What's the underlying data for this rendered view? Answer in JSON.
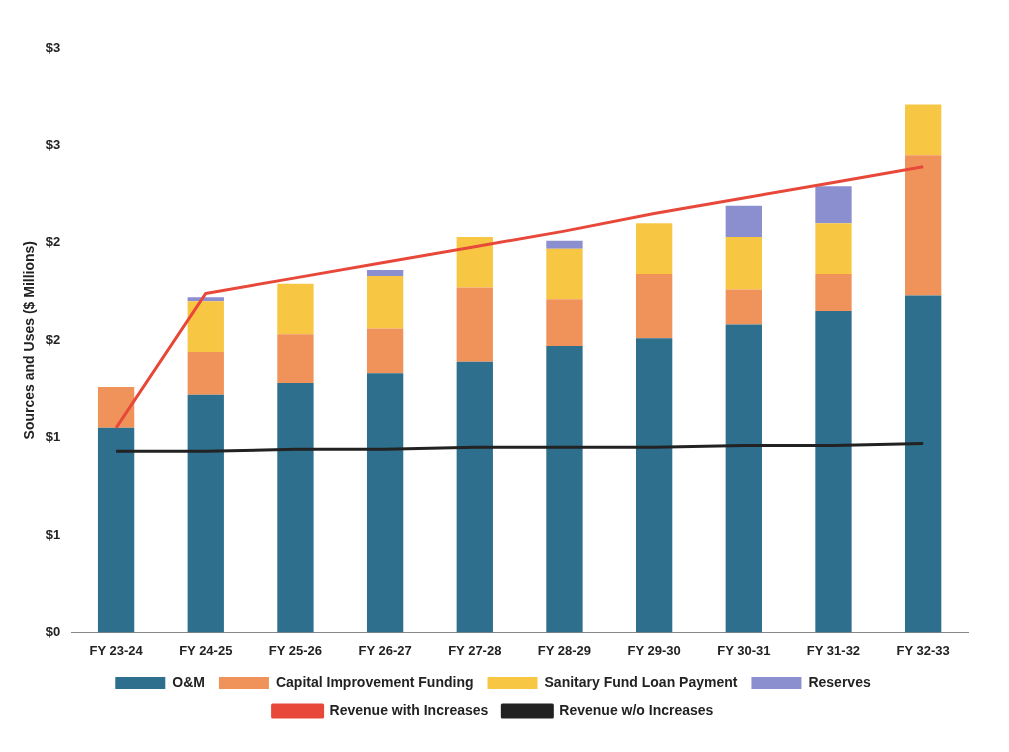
{
  "chart_data": {
    "type": "bar",
    "stacked": true,
    "ylabel": "Sources and Uses ($ Millions)",
    "categories": [
      "FY 23-24",
      "FY 24-25",
      "FY 25-26",
      "FY 26-27",
      "FY 27-28",
      "FY 28-29",
      "FY 29-30",
      "FY 30-31",
      "FY 31-32",
      "FY 32-33"
    ],
    "ylim": [
      0,
      3
    ],
    "yticks": [
      {
        "value": 0,
        "label": "$0"
      },
      {
        "value": 0.5,
        "label": "$1"
      },
      {
        "value": 1,
        "label": "$1"
      },
      {
        "value": 1.5,
        "label": "$2"
      },
      {
        "value": 2,
        "label": "$2"
      },
      {
        "value": 2.5,
        "label": "$3"
      },
      {
        "value": 3,
        "label": "$3"
      }
    ],
    "grid": false,
    "legend": "bottom",
    "marker": "none",
    "series": [
      {
        "name": "O&M",
        "color": "#2e6f8e",
        "values": [
          1.05,
          1.22,
          1.28,
          1.33,
          1.39,
          1.47,
          1.51,
          1.58,
          1.65,
          1.73
        ]
      },
      {
        "name": "Capital Improvement Funding",
        "color": "#f0935a",
        "values": [
          0.21,
          0.22,
          0.25,
          0.23,
          0.38,
          0.24,
          0.33,
          0.18,
          0.19,
          0.72
        ]
      },
      {
        "name": "Sanitary Fund Loan Payment",
        "color": "#f7c744",
        "values": [
          null,
          0.26,
          0.26,
          0.27,
          0.26,
          0.26,
          0.26,
          0.27,
          0.26,
          0.26
        ]
      },
      {
        "name": "Reserves",
        "color": "#8b8fd0",
        "values": [
          null,
          0.02,
          null,
          0.03,
          null,
          0.04,
          null,
          0.16,
          0.19,
          null
        ]
      },
      {
        "name": "Revenue with Increases",
        "type": "line",
        "color": "#e8483a",
        "values": [
          1.05,
          1.74,
          1.82,
          1.9,
          1.98,
          2.06,
          2.15,
          2.23,
          2.31,
          2.39
        ]
      },
      {
        "name": "Revenue w/o Increases",
        "type": "line",
        "color": "#222222",
        "values": [
          0.93,
          0.93,
          0.94,
          0.94,
          0.95,
          0.95,
          0.95,
          0.96,
          0.96,
          0.97
        ]
      }
    ]
  }
}
